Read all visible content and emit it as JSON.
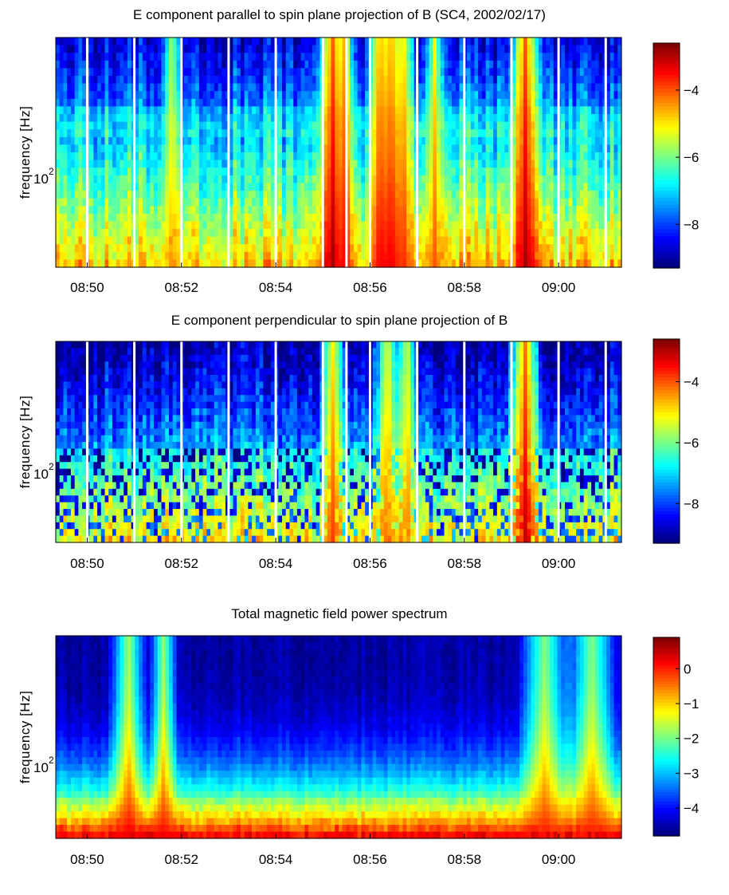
{
  "chart_data": [
    {
      "type": "heatmap",
      "title": "E component parallel to spin plane projection of B (SC4, 2002/02/17)",
      "ylabel": "frequency [Hz]",
      "y_tick_labels": [
        "10",
        "2"
      ],
      "x_tick_labels": [
        "08:50",
        "08:52",
        "08:54",
        "08:56",
        "08:58",
        "09:00"
      ],
      "xlim": [
        "08:49:20",
        "09:01:20"
      ],
      "colorbar": {
        "ticks": [
          -4,
          -6,
          -8
        ],
        "tick_labels": [
          "−4",
          "−6",
          "−8"
        ],
        "clim": [
          -9.3,
          -2.6
        ]
      },
      "data_gaps_at": [
        "08:50:00",
        "08:51:00",
        "08:52:00",
        "08:53:00",
        "08:54:00",
        "08:55:00",
        "08:55:30",
        "08:56:00",
        "08:57:00",
        "08:58:00",
        "08:59:00",
        "09:00:00",
        "09:01:00"
      ],
      "bursts": [
        {
          "t": "08:55:10",
          "level": -2.8,
          "width": 0.35
        },
        {
          "t": "08:55:25",
          "level": -3.4,
          "width": 0.2
        },
        {
          "t": "08:56:10",
          "level": -3.4,
          "width": 0.3
        },
        {
          "t": "08:56:25",
          "level": -3.2,
          "width": 0.25
        },
        {
          "t": "08:56:40",
          "level": -3.6,
          "width": 0.25
        },
        {
          "t": "08:57:20",
          "level": -4.0,
          "width": 0.2
        },
        {
          "t": "08:59:15",
          "level": -2.8,
          "width": 0.35
        },
        {
          "t": "08:51:45",
          "level": -4.6,
          "width": 0.2
        }
      ]
    },
    {
      "type": "heatmap",
      "title": "E component perpendicular to spin plane projection of B",
      "ylabel": "frequency [Hz]",
      "y_tick_labels": [
        "10",
        "2"
      ],
      "x_tick_labels": [
        "08:50",
        "08:52",
        "08:54",
        "08:56",
        "08:58",
        "09:00"
      ],
      "xlim": [
        "08:49:20",
        "09:01:20"
      ],
      "colorbar": {
        "ticks": [
          -4,
          -6,
          -8
        ],
        "tick_labels": [
          "−4",
          "−6",
          "−8"
        ],
        "clim": [
          -9.3,
          -2.6
        ]
      },
      "data_gaps_at": [
        "08:50:00",
        "08:51:00",
        "08:52:00",
        "08:53:00",
        "08:54:00",
        "08:55:00",
        "08:55:30",
        "08:56:00",
        "08:57:00",
        "08:58:00",
        "08:59:00",
        "09:00:00",
        "09:01:00"
      ],
      "bursts": [
        {
          "t": "08:55:10",
          "level": -3.8,
          "width": 0.3
        },
        {
          "t": "08:56:20",
          "level": -4.0,
          "width": 0.3
        },
        {
          "t": "08:56:45",
          "level": -4.2,
          "width": 0.25
        },
        {
          "t": "08:59:15",
          "level": -3.0,
          "width": 0.35
        }
      ]
    },
    {
      "type": "heatmap",
      "title": "Total magnetic field power spectrum",
      "ylabel": "frequency [Hz]",
      "y_tick_labels": [
        "10",
        "2"
      ],
      "x_tick_labels": [
        "08:50",
        "08:52",
        "08:54",
        "08:56",
        "08:58",
        "09:00"
      ],
      "xlim": [
        "08:49:20",
        "09:01:20"
      ],
      "colorbar": {
        "ticks": [
          0,
          -1,
          -2,
          -3,
          -4
        ],
        "tick_labels": [
          "0",
          "−1",
          "−2",
          "−3",
          "−4"
        ],
        "clim": [
          -4.8,
          0.9
        ]
      },
      "data_gaps_at": [],
      "bursts": [
        {
          "t": "08:50:50",
          "level": 0.3,
          "width": 0.4
        },
        {
          "t": "08:51:35",
          "level": 0.2,
          "width": 0.3
        },
        {
          "t": "08:59:40",
          "level": 0.1,
          "width": 0.6
        },
        {
          "t": "09:00:40",
          "level": 0.1,
          "width": 0.6
        }
      ]
    }
  ],
  "colors": {
    "background": "#ffffff",
    "gap": "#ffffff",
    "colormap": "jet"
  }
}
